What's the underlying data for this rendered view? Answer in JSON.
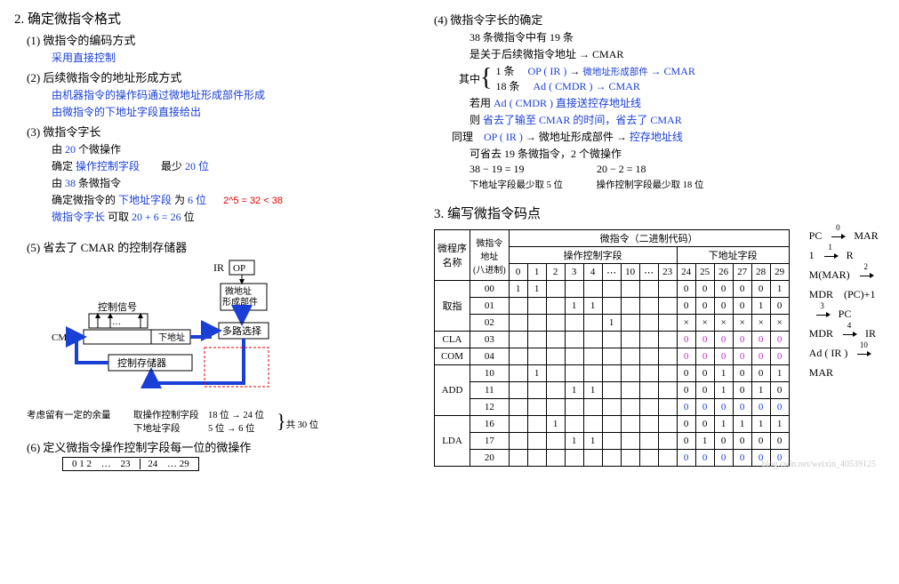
{
  "left": {
    "h2": "2. 确定微指令格式",
    "s1_title": "(1) 微指令的编码方式",
    "s1_l1": "采用直接控制",
    "s2_title": "(2) 后续微指令的地址形成方式",
    "s2_l1": "由机器指令的操作码通过微地址形成部件形成",
    "s2_l2": "由微指令的下地址字段直接给出",
    "s3_title": "(3) 微指令字长",
    "s3_l1a": "由 ",
    "s3_l1b": "20 ",
    "s3_l1c": "个微操作",
    "s3_l2a": "确定 ",
    "s3_l2b": "操作控制字段",
    "s3_l2c": "　　最少 ",
    "s3_l2d": "20 位",
    "s3_l3a": "由 ",
    "s3_l3b": "38 ",
    "s3_l3c": "条微指令",
    "s3_l4a": "确定微指令的 ",
    "s3_l4b": "下地址字段 ",
    "s3_l4c": "为 ",
    "s3_l4d": "6 位",
    "s3_l4_red": "2^5 = 32 < 38",
    "s3_l5a": "微指令字长 ",
    "s3_l5b": "可取 ",
    "s3_l5c": "20 + 6 = 26 ",
    "s3_l5d": "位",
    "s5_title": "(5) 省去了 CMAR 的控制存储器",
    "diagram": {
      "ir": "IR",
      "op": "OP",
      "form": "微地址\n形成部件",
      "mux": "多路选择",
      "ctrl_sig": "控制信号",
      "dots": "…",
      "cmdr": "CMDR",
      "next": "下地址",
      "cstore": "控制存储器",
      "note_left": "考虑留有一定的余量",
      "note_r1": "取操作控制字段　18 位 → 24 位",
      "note_r2": "下地址字段　　　5 位 →  6 位",
      "note_r3": "共 30 位"
    },
    "s6_title": "(6) 定义微指令操作控制字段每一位的微操作",
    "seg_a": "0 1 2",
    "seg_dots": "…",
    "seg_b": "23",
    "seg_c": "24",
    "seg_d": "… 29"
  },
  "right": {
    "s4_title": "(4) 微指令字长的确定",
    "l1": "38 条微指令中有 19 条",
    "l2a": "是关于后续微指令地址 ",
    "l2b": "→ CMAR",
    "brace_label": "其中",
    "b1a": "1 条",
    "b1b": "OP ( IR ) ",
    "b1c": "→ ",
    "b1d": "微地址形成部件 ",
    "b1e": "→ CMAR",
    "b2a": "18 条",
    "b2b": "Ad ( CMDR ) ",
    "b2c": "→ CMAR",
    "l3a": "若用 ",
    "l3b": "Ad ( CMDR ) 直接送控存地址线",
    "l4a": "则 ",
    "l4b": "省去了输至 CMAR 的时间，省去了 CMAR",
    "l5a": "同理　",
    "l5b": "OP ( IR ) ",
    "l5c": "→ 微地址形成部件 → ",
    "l5d": "控存地址线",
    "l6": "可省去 19 条微指令，2 个微操作",
    "calc1": "38 − 19 = 19",
    "calc2": "20 − 2 = 18",
    "l7a": "下地址字段最少取 5 位",
    "l7b": "操作控制字段最少取 18 位",
    "h3": "3. 编写微指令码点",
    "table": {
      "col0": "微程序\n名称",
      "col1": "微指令\n地址\n(八进制)",
      "col2": "微指令（二进制代码）",
      "sub1": "操作控制字段",
      "sub2": "下地址字段",
      "bits1": [
        "0",
        "1",
        "2",
        "3",
        "4",
        "⋯",
        "10",
        "⋯",
        "23"
      ],
      "bits2": [
        "24",
        "25",
        "26",
        "27",
        "28",
        "29"
      ],
      "rows": [
        {
          "g": "取指",
          "a": "00",
          "op": [
            "1",
            "1",
            "",
            "",
            "",
            "",
            "",
            "",
            ""
          ],
          "ad": [
            "0",
            "0",
            "0",
            "0",
            "0",
            "1"
          ],
          "cls": ""
        },
        {
          "g": "",
          "a": "01",
          "op": [
            "",
            "",
            "",
            "1",
            "1",
            "",
            "",
            "",
            ""
          ],
          "ad": [
            "0",
            "0",
            "0",
            "0",
            "1",
            "0"
          ],
          "cls": ""
        },
        {
          "g": "",
          "a": "02",
          "op": [
            "",
            "",
            "",
            "",
            "",
            "1",
            "",
            "",
            ""
          ],
          "ad": [
            "×",
            "×",
            "×",
            "×",
            "×",
            "×"
          ],
          "cls": ""
        },
        {
          "g": "CLA",
          "a": "03",
          "op": [
            "",
            "",
            "",
            "",
            "",
            "",
            "",
            "",
            ""
          ],
          "ad": [
            "0",
            "0",
            "0",
            "0",
            "0",
            "0"
          ],
          "cls": "pu"
        },
        {
          "g": "COM",
          "a": "04",
          "op": [
            "",
            "",
            "",
            "",
            "",
            "",
            "",
            "",
            ""
          ],
          "ad": [
            "0",
            "0",
            "0",
            "0",
            "0",
            "0"
          ],
          "cls": "pu"
        },
        {
          "g": "ADD",
          "a": "10",
          "op": [
            "",
            "1",
            "",
            "",
            "",
            "",
            "",
            "",
            ""
          ],
          "ad": [
            "0",
            "0",
            "1",
            "0",
            "0",
            "1"
          ],
          "cls": ""
        },
        {
          "g": "",
          "a": "11",
          "op": [
            "",
            "",
            "",
            "1",
            "1",
            "",
            "",
            "",
            ""
          ],
          "ad": [
            "0",
            "0",
            "1",
            "0",
            "1",
            "0"
          ],
          "cls": ""
        },
        {
          "g": "",
          "a": "12",
          "op": [
            "",
            "",
            "",
            "",
            "",
            "",
            "",
            "",
            ""
          ],
          "ad": [
            "0",
            "0",
            "0",
            "0",
            "0",
            "0"
          ],
          "cls": "bl"
        },
        {
          "g": "LDA",
          "a": "16",
          "op": [
            "",
            "",
            "1",
            "",
            "",
            "",
            "",
            "",
            ""
          ],
          "ad": [
            "0",
            "0",
            "1",
            "1",
            "1",
            "1"
          ],
          "cls": ""
        },
        {
          "g": "",
          "a": "17",
          "op": [
            "",
            "",
            "",
            "1",
            "1",
            "",
            "",
            "",
            ""
          ],
          "ad": [
            "0",
            "1",
            "0",
            "0",
            "0",
            "0"
          ],
          "cls": ""
        },
        {
          "g": "",
          "a": "20",
          "op": [
            "",
            "",
            "",
            "",
            "",
            "",
            "",
            "",
            ""
          ],
          "ad": [
            "0",
            "0",
            "0",
            "0",
            "0",
            "0"
          ],
          "cls": "bl"
        }
      ]
    },
    "steps": [
      {
        "l": "PC",
        "n": "0",
        "r": "MAR",
        "sp": "　　",
        "l2": "1",
        "n2": "1",
        "r2": "R"
      },
      {
        "l": "M(MAR)",
        "n": "2",
        "r": "MDR",
        "sp": "　",
        "l2": "(PC)+1",
        "n2": "3",
        "r2": "PC"
      },
      {
        "l": "MDR",
        "n": "4",
        "r": "IR",
        "sp": "",
        "l2": "",
        "n2": "",
        "r2": ""
      },
      {
        "l": "Ad ( IR )",
        "n": "10",
        "r": "MAR",
        "sp": "",
        "l2": "",
        "n2": "",
        "r2": ""
      }
    ]
  },
  "watermark": "blog.csdn.net/weixin_40539125"
}
